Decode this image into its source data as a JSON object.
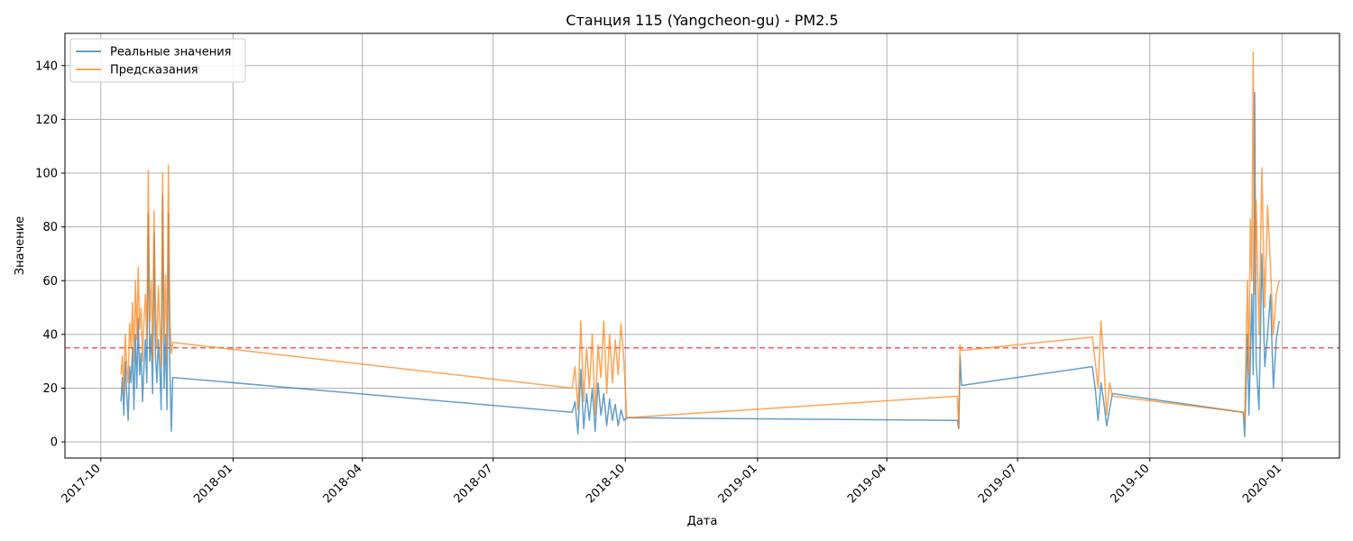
{
  "chart_data": {
    "type": "line",
    "title": "Станция 115 (Yangcheon-gu) - PM2.5",
    "xlabel": "Дата",
    "ylabel": "Значение",
    "xlim": [
      "2017-09-06",
      "2020-02-10"
    ],
    "ylim": [
      -6,
      152
    ],
    "y_ticks": [
      0,
      20,
      40,
      60,
      80,
      100,
      120,
      140
    ],
    "x_ticks": [
      "2017-10",
      "2018-01",
      "2018-04",
      "2018-07",
      "2018-10",
      "2019-01",
      "2019-04",
      "2019-07",
      "2019-10",
      "2020-01"
    ],
    "grid": true,
    "legend_position": "top-left",
    "threshold": {
      "value": 35,
      "color": "#ff0000",
      "style": "dashed"
    },
    "series": [
      {
        "name": "Реальные значения",
        "color": "#1f77b4",
        "x": [
          "2017-10-15",
          "2017-10-16",
          "2017-10-17",
          "2017-10-18",
          "2017-10-19",
          "2017-10-20",
          "2017-10-21",
          "2017-10-22",
          "2017-10-23",
          "2017-10-24",
          "2017-10-25",
          "2017-10-26",
          "2017-10-27",
          "2017-10-28",
          "2017-10-29",
          "2017-10-30",
          "2017-10-31",
          "2017-11-01",
          "2017-11-02",
          "2017-11-03",
          "2017-11-04",
          "2017-11-05",
          "2017-11-06",
          "2017-11-07",
          "2017-11-08",
          "2017-11-09",
          "2017-11-10",
          "2017-11-11",
          "2017-11-12",
          "2017-11-13",
          "2017-11-14",
          "2017-11-15",
          "2017-11-16",
          "2017-11-17",
          "2017-11-18",
          "2017-11-19",
          "2017-11-20",
          "2018-08-25",
          "2018-08-27",
          "2018-08-29",
          "2018-08-31",
          "2018-09-02",
          "2018-09-04",
          "2018-09-06",
          "2018-09-08",
          "2018-09-10",
          "2018-09-12",
          "2018-09-14",
          "2018-09-16",
          "2018-09-18",
          "2018-09-20",
          "2018-09-22",
          "2018-09-24",
          "2018-09-26",
          "2018-09-28",
          "2018-09-30",
          "2018-10-02",
          "2019-05-20",
          "2019-05-21",
          "2019-05-22",
          "2019-05-23",
          "2019-08-22",
          "2019-08-24",
          "2019-08-26",
          "2019-08-28",
          "2019-08-30",
          "2019-09-01",
          "2019-09-03",
          "2019-09-05",
          "2019-12-05",
          "2019-12-06",
          "2019-12-08",
          "2019-12-09",
          "2019-12-10",
          "2019-12-11",
          "2019-12-12",
          "2019-12-13",
          "2019-12-14",
          "2019-12-16",
          "2019-12-18",
          "2019-12-20",
          "2019-12-22",
          "2019-12-24",
          "2019-12-26",
          "2019-12-28",
          "2019-12-30"
        ],
        "values": [
          15,
          24,
          10,
          30,
          18,
          8,
          28,
          22,
          35,
          12,
          40,
          20,
          46,
          25,
          33,
          15,
          28,
          38,
          22,
          85,
          30,
          40,
          18,
          78,
          32,
          22,
          38,
          28,
          12,
          92,
          20,
          40,
          12,
          85,
          28,
          4,
          24,
          11,
          15,
          3,
          27,
          5,
          18,
          8,
          20,
          4,
          22,
          10,
          18,
          6,
          16,
          8,
          14,
          6,
          12,
          8,
          9,
          8,
          5,
          32,
          21,
          28,
          20,
          8,
          22,
          15,
          6,
          12,
          18,
          11,
          2,
          40,
          10,
          30,
          55,
          25,
          130,
          30,
          12,
          70,
          28,
          40,
          55,
          20,
          38,
          45
        ]
      },
      {
        "name": "Предсказания",
        "color": "#ff7f0e",
        "x": [
          "2017-10-15",
          "2017-10-16",
          "2017-10-17",
          "2017-10-18",
          "2017-10-19",
          "2017-10-20",
          "2017-10-21",
          "2017-10-22",
          "2017-10-23",
          "2017-10-24",
          "2017-10-25",
          "2017-10-26",
          "2017-10-27",
          "2017-10-28",
          "2017-10-29",
          "2017-10-30",
          "2017-10-31",
          "2017-11-01",
          "2017-11-02",
          "2017-11-03",
          "2017-11-04",
          "2017-11-05",
          "2017-11-06",
          "2017-11-07",
          "2017-11-08",
          "2017-11-09",
          "2017-11-10",
          "2017-11-11",
          "2017-11-12",
          "2017-11-13",
          "2017-11-14",
          "2017-11-15",
          "2017-11-16",
          "2017-11-17",
          "2017-11-18",
          "2017-11-19",
          "2017-11-20",
          "2018-08-25",
          "2018-08-27",
          "2018-08-29",
          "2018-08-31",
          "2018-09-02",
          "2018-09-04",
          "2018-09-06",
          "2018-09-08",
          "2018-09-10",
          "2018-09-12",
          "2018-09-14",
          "2018-09-16",
          "2018-09-18",
          "2018-09-20",
          "2018-09-22",
          "2018-09-24",
          "2018-09-26",
          "2018-09-28",
          "2018-09-30",
          "2018-10-02",
          "2019-05-20",
          "2019-05-21",
          "2019-05-22",
          "2019-05-23",
          "2019-08-22",
          "2019-08-24",
          "2019-08-26",
          "2019-08-28",
          "2019-08-30",
          "2019-09-01",
          "2019-09-03",
          "2019-09-05",
          "2019-12-05",
          "2019-12-06",
          "2019-12-08",
          "2019-12-09",
          "2019-12-10",
          "2019-12-11",
          "2019-12-12",
          "2019-12-13",
          "2019-12-14",
          "2019-12-16",
          "2019-12-18",
          "2019-12-20",
          "2019-12-22",
          "2019-12-24",
          "2019-12-26",
          "2019-12-28",
          "2019-12-30"
        ],
        "values": [
          25,
          32,
          18,
          40,
          28,
          22,
          44,
          35,
          52,
          30,
          60,
          38,
          65,
          42,
          50,
          30,
          45,
          55,
          38,
          101,
          45,
          60,
          30,
          86,
          50,
          35,
          58,
          44,
          28,
          100,
          38,
          62,
          30,
          103,
          45,
          33,
          37,
          20,
          28,
          12,
          45,
          15,
          35,
          20,
          40,
          10,
          36,
          24,
          45,
          18,
          40,
          22,
          38,
          25,
          44,
          30,
          9,
          17,
          5,
          36,
          34,
          39,
          30,
          20,
          45,
          30,
          10,
          22,
          17,
          11,
          8,
          60,
          25,
          83,
          60,
          145,
          55,
          90,
          40,
          102,
          50,
          88,
          65,
          40,
          55,
          60
        ]
      }
    ]
  }
}
